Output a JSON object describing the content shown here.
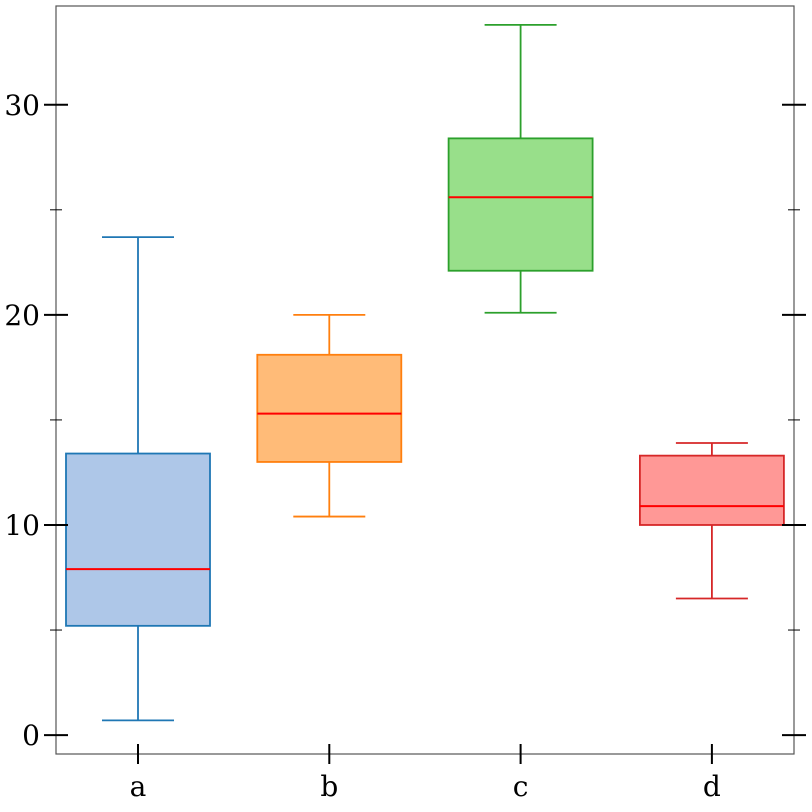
{
  "chart_data": {
    "type": "boxplot",
    "title": "",
    "xlabel": "",
    "ylabel": "",
    "categories": [
      "a",
      "b",
      "c",
      "d"
    ],
    "ylim": [
      -0.9,
      34.7
    ],
    "yticks": [
      0,
      10,
      20,
      30
    ],
    "yticks_minor": [
      5,
      15,
      25
    ],
    "ytick_labels": [
      "0",
      "10",
      "20",
      "30"
    ],
    "grid": false,
    "series": [
      {
        "category": "a",
        "whisker_low": 0.7,
        "q1": 5.2,
        "median": 7.9,
        "q3": 13.4,
        "whisker_high": 23.7,
        "fill": "#aec7e8",
        "edge": "#1f77b4"
      },
      {
        "category": "b",
        "whisker_low": 10.4,
        "q1": 13.0,
        "median": 15.3,
        "q3": 18.1,
        "whisker_high": 20.0,
        "fill": "#ffbb78",
        "edge": "#ff7f0e"
      },
      {
        "category": "c",
        "whisker_low": 20.1,
        "q1": 22.1,
        "median": 25.6,
        "q3": 28.4,
        "whisker_high": 33.8,
        "fill": "#98df8a",
        "edge": "#2ca02c"
      },
      {
        "category": "d",
        "whisker_low": 6.5,
        "q1": 10.0,
        "median": 10.9,
        "q3": 13.3,
        "whisker_high": 13.9,
        "fill": "#ff9896",
        "edge": "#d62728"
      }
    ],
    "median_color": "#ff0000"
  }
}
